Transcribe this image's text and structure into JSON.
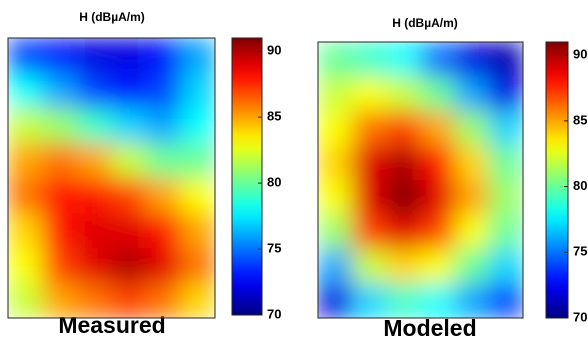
{
  "chart_data": [
    {
      "type": "heatmap",
      "title": "H (dBµA/m)",
      "label": "Measured",
      "colormap": "jet",
      "zlim": [
        70,
        91
      ],
      "zticks": [
        70,
        75,
        80,
        85,
        90
      ],
      "z": [
        [
          74,
          73,
          72,
          72,
          73,
          76
        ],
        [
          78,
          76,
          74,
          73,
          74,
          77
        ],
        [
          82,
          81,
          79,
          77,
          76,
          78
        ],
        [
          85,
          86,
          85,
          82,
          80,
          80
        ],
        [
          86,
          88,
          88,
          87,
          85,
          83
        ],
        [
          84,
          88,
          89,
          89,
          88,
          85
        ],
        [
          83,
          87,
          89,
          90,
          89,
          86
        ],
        [
          82,
          85,
          86,
          87,
          86,
          84
        ]
      ]
    },
    {
      "type": "heatmap",
      "title": "H (dBµA/m)",
      "label": "Modeled",
      "colormap": "jet",
      "zlim": [
        70,
        91
      ],
      "zticks": [
        70,
        75,
        80,
        85,
        90
      ],
      "z": [
        [
          80,
          79,
          78,
          75,
          72,
          71
        ],
        [
          82,
          83,
          82,
          80,
          76,
          72
        ],
        [
          83,
          86,
          87,
          85,
          81,
          77
        ],
        [
          84,
          89,
          90,
          88,
          84,
          80
        ],
        [
          83,
          89,
          91,
          89,
          85,
          81
        ],
        [
          81,
          87,
          89,
          87,
          83,
          80
        ],
        [
          76,
          82,
          84,
          83,
          80,
          77
        ],
        [
          72,
          77,
          79,
          78,
          76,
          74
        ]
      ]
    }
  ]
}
